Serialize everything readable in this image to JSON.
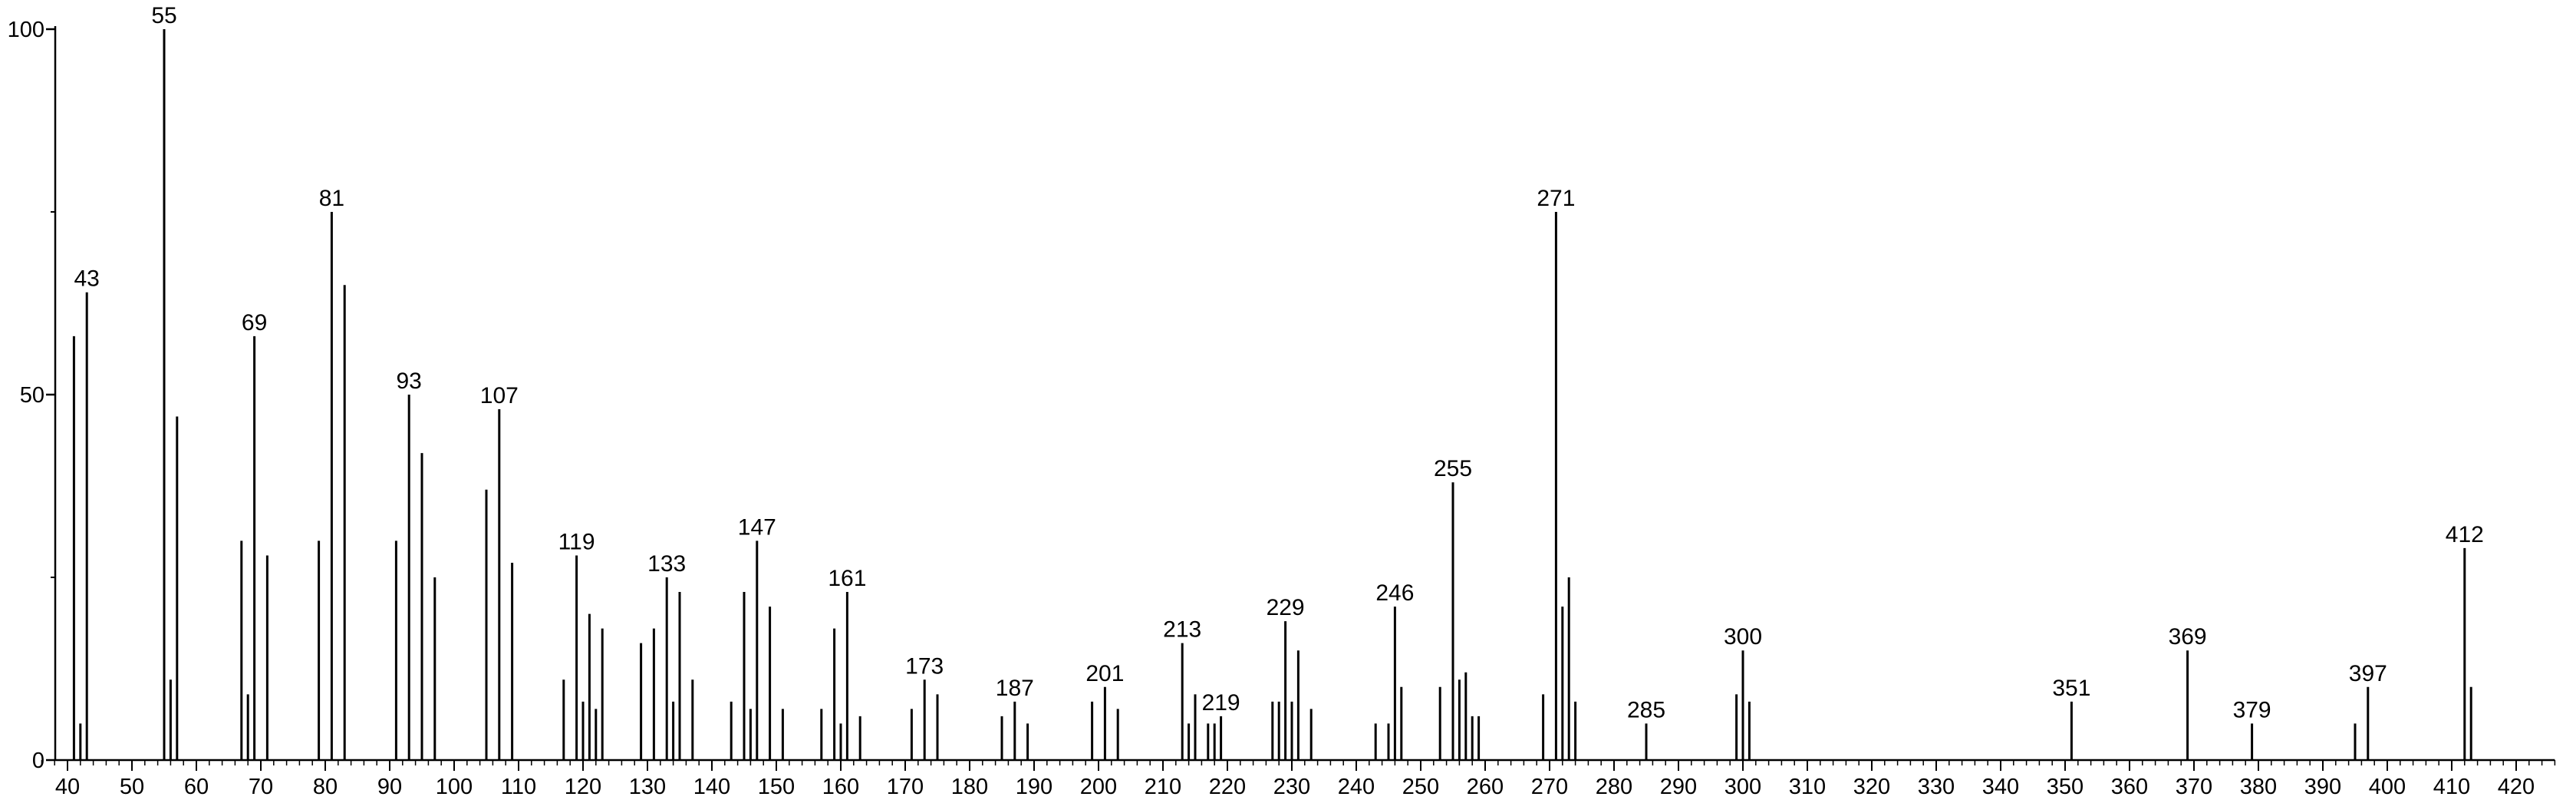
{
  "chart_data": {
    "type": "bar",
    "title": "",
    "xlabel": "",
    "ylabel": "",
    "xlim": [
      36,
      426
    ],
    "ylim": [
      0,
      100
    ],
    "grid": false,
    "x_ticks": [
      40,
      50,
      60,
      70,
      80,
      90,
      100,
      110,
      120,
      130,
      140,
      150,
      160,
      170,
      180,
      190,
      200,
      210,
      220,
      230,
      240,
      250,
      260,
      270,
      280,
      290,
      300,
      310,
      320,
      330,
      340,
      350,
      360,
      370,
      380,
      390,
      400,
      410,
      420
    ],
    "y_ticks": [
      0,
      50,
      100
    ],
    "peaks": [
      {
        "mz": 41,
        "intensity": 58,
        "label": ""
      },
      {
        "mz": 42,
        "intensity": 5,
        "label": ""
      },
      {
        "mz": 43,
        "intensity": 64,
        "label": "43"
      },
      {
        "mz": 55,
        "intensity": 100,
        "label": "55"
      },
      {
        "mz": 56,
        "intensity": 11,
        "label": ""
      },
      {
        "mz": 57,
        "intensity": 47,
        "label": ""
      },
      {
        "mz": 67,
        "intensity": 30,
        "label": ""
      },
      {
        "mz": 68,
        "intensity": 9,
        "label": ""
      },
      {
        "mz": 69,
        "intensity": 58,
        "label": "69"
      },
      {
        "mz": 71,
        "intensity": 28,
        "label": ""
      },
      {
        "mz": 79,
        "intensity": 30,
        "label": ""
      },
      {
        "mz": 81,
        "intensity": 75,
        "label": "81"
      },
      {
        "mz": 83,
        "intensity": 65,
        "label": ""
      },
      {
        "mz": 91,
        "intensity": 30,
        "label": ""
      },
      {
        "mz": 93,
        "intensity": 50,
        "label": "93"
      },
      {
        "mz": 95,
        "intensity": 42,
        "label": ""
      },
      {
        "mz": 97,
        "intensity": 25,
        "label": ""
      },
      {
        "mz": 105,
        "intensity": 37,
        "label": ""
      },
      {
        "mz": 107,
        "intensity": 48,
        "label": "107"
      },
      {
        "mz": 109,
        "intensity": 27,
        "label": ""
      },
      {
        "mz": 117,
        "intensity": 11,
        "label": ""
      },
      {
        "mz": 119,
        "intensity": 28,
        "label": "119"
      },
      {
        "mz": 120,
        "intensity": 8,
        "label": ""
      },
      {
        "mz": 121,
        "intensity": 20,
        "label": ""
      },
      {
        "mz": 122,
        "intensity": 7,
        "label": ""
      },
      {
        "mz": 123,
        "intensity": 18,
        "label": ""
      },
      {
        "mz": 129,
        "intensity": 16,
        "label": ""
      },
      {
        "mz": 131,
        "intensity": 18,
        "label": ""
      },
      {
        "mz": 133,
        "intensity": 25,
        "label": "133"
      },
      {
        "mz": 134,
        "intensity": 8,
        "label": ""
      },
      {
        "mz": 135,
        "intensity": 23,
        "label": ""
      },
      {
        "mz": 137,
        "intensity": 11,
        "label": ""
      },
      {
        "mz": 143,
        "intensity": 8,
        "label": ""
      },
      {
        "mz": 145,
        "intensity": 23,
        "label": ""
      },
      {
        "mz": 146,
        "intensity": 7,
        "label": ""
      },
      {
        "mz": 147,
        "intensity": 30,
        "label": "147"
      },
      {
        "mz": 149,
        "intensity": 21,
        "label": ""
      },
      {
        "mz": 151,
        "intensity": 7,
        "label": ""
      },
      {
        "mz": 157,
        "intensity": 7,
        "label": ""
      },
      {
        "mz": 159,
        "intensity": 18,
        "label": ""
      },
      {
        "mz": 160,
        "intensity": 5,
        "label": ""
      },
      {
        "mz": 161,
        "intensity": 23,
        "label": "161"
      },
      {
        "mz": 163,
        "intensity": 6,
        "label": ""
      },
      {
        "mz": 171,
        "intensity": 7,
        "label": ""
      },
      {
        "mz": 173,
        "intensity": 11,
        "label": "173"
      },
      {
        "mz": 175,
        "intensity": 9,
        "label": ""
      },
      {
        "mz": 185,
        "intensity": 6,
        "label": ""
      },
      {
        "mz": 187,
        "intensity": 8,
        "label": "187"
      },
      {
        "mz": 189,
        "intensity": 5,
        "label": ""
      },
      {
        "mz": 199,
        "intensity": 8,
        "label": ""
      },
      {
        "mz": 201,
        "intensity": 10,
        "label": "201"
      },
      {
        "mz": 203,
        "intensity": 7,
        "label": ""
      },
      {
        "mz": 213,
        "intensity": 16,
        "label": "213"
      },
      {
        "mz": 214,
        "intensity": 5,
        "label": ""
      },
      {
        "mz": 215,
        "intensity": 9,
        "label": ""
      },
      {
        "mz": 217,
        "intensity": 5,
        "label": ""
      },
      {
        "mz": 218,
        "intensity": 5,
        "label": ""
      },
      {
        "mz": 219,
        "intensity": 6,
        "label": "219"
      },
      {
        "mz": 227,
        "intensity": 8,
        "label": ""
      },
      {
        "mz": 228,
        "intensity": 8,
        "label": ""
      },
      {
        "mz": 229,
        "intensity": 19,
        "label": "229"
      },
      {
        "mz": 230,
        "intensity": 8,
        "label": ""
      },
      {
        "mz": 231,
        "intensity": 15,
        "label": ""
      },
      {
        "mz": 233,
        "intensity": 7,
        "label": ""
      },
      {
        "mz": 243,
        "intensity": 5,
        "label": ""
      },
      {
        "mz": 245,
        "intensity": 5,
        "label": ""
      },
      {
        "mz": 246,
        "intensity": 21,
        "label": "246"
      },
      {
        "mz": 247,
        "intensity": 10,
        "label": ""
      },
      {
        "mz": 253,
        "intensity": 10,
        "label": ""
      },
      {
        "mz": 255,
        "intensity": 38,
        "label": "255"
      },
      {
        "mz": 256,
        "intensity": 11,
        "label": ""
      },
      {
        "mz": 257,
        "intensity": 12,
        "label": ""
      },
      {
        "mz": 258,
        "intensity": 6,
        "label": ""
      },
      {
        "mz": 259,
        "intensity": 6,
        "label": ""
      },
      {
        "mz": 269,
        "intensity": 9,
        "label": ""
      },
      {
        "mz": 271,
        "intensity": 75,
        "label": "271"
      },
      {
        "mz": 272,
        "intensity": 21,
        "label": ""
      },
      {
        "mz": 273,
        "intensity": 25,
        "label": ""
      },
      {
        "mz": 274,
        "intensity": 8,
        "label": ""
      },
      {
        "mz": 285,
        "intensity": 5,
        "label": "285"
      },
      {
        "mz": 299,
        "intensity": 9,
        "label": ""
      },
      {
        "mz": 300,
        "intensity": 15,
        "label": "300"
      },
      {
        "mz": 301,
        "intensity": 8,
        "label": ""
      },
      {
        "mz": 351,
        "intensity": 8,
        "label": "351"
      },
      {
        "mz": 369,
        "intensity": 15,
        "label": "369"
      },
      {
        "mz": 379,
        "intensity": 5,
        "label": "379"
      },
      {
        "mz": 395,
        "intensity": 5,
        "label": ""
      },
      {
        "mz": 397,
        "intensity": 10,
        "label": "397"
      },
      {
        "mz": 412,
        "intensity": 29,
        "label": "412"
      },
      {
        "mz": 413,
        "intensity": 10,
        "label": ""
      }
    ]
  }
}
